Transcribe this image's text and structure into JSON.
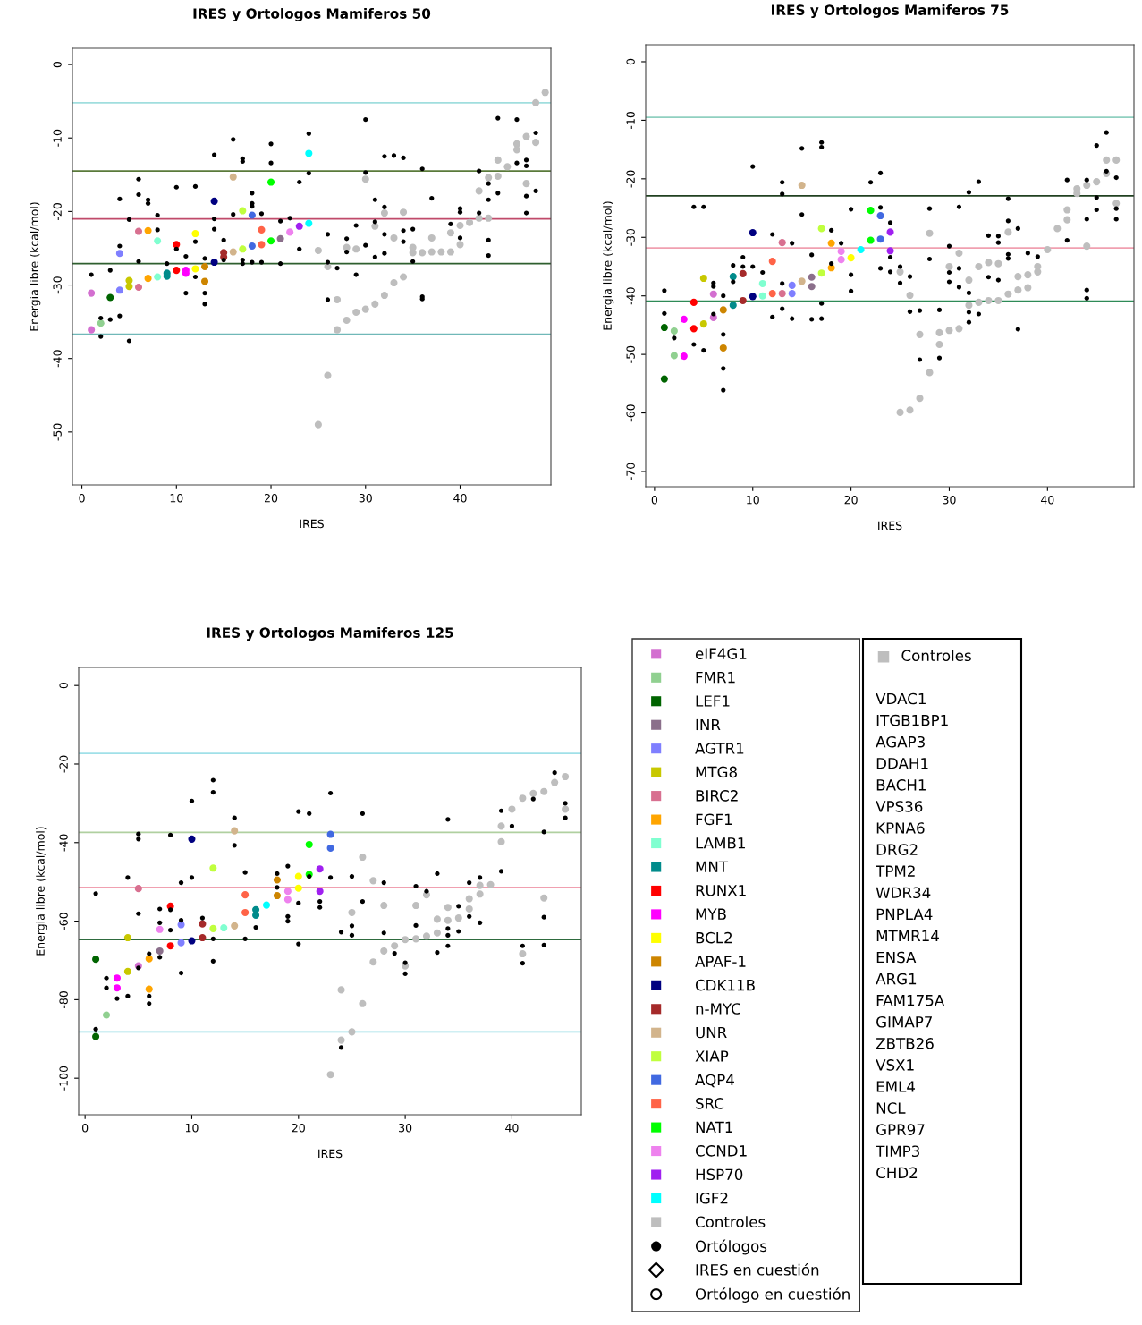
{
  "chart_data": [
    {
      "type": "scatter",
      "title": "IRES y Ortologos Mamiferos 50",
      "xlabel": "IRES",
      "ylabel": "Energia libre (kcal/mol)",
      "xlim": [
        -1.0,
        49.6
      ],
      "ylim": [
        -57.2,
        2.2
      ],
      "xticks": [
        0,
        10,
        20,
        30,
        40
      ],
      "yticks": [
        0,
        -10,
        -20,
        -30,
        -40,
        -50
      ],
      "grid": false,
      "marker": "circle",
      "ref_lines": [
        {
          "axis": "y",
          "value": -5.2,
          "color": "#a0dede"
        },
        {
          "axis": "y",
          "value": -14.5,
          "color": "#5a7a3a"
        },
        {
          "axis": "y",
          "value": -21.0,
          "color": "#c04a6a"
        },
        {
          "axis": "y",
          "value": -27.1,
          "color": "#2f5f2f"
        },
        {
          "axis": "y",
          "value": -36.7,
          "color": "#70b8b8"
        }
      ],
      "series": [
        {
          "color": "#d36fd0",
          "x": [
            1,
            1
          ],
          "values": [
            -31.1,
            -36.1
          ]
        },
        {
          "color": "#90d090",
          "x": [
            2
          ],
          "values": [
            -35.2
          ]
        },
        {
          "color": "#006400",
          "x": [
            3
          ],
          "values": [
            -31.7
          ]
        },
        {
          "color": "#8b6f8b",
          "x": [
            21
          ],
          "values": [
            -23.7
          ]
        },
        {
          "color": "#7f7fff",
          "x": [
            4,
            4
          ],
          "values": [
            -25.7,
            -30.7
          ]
        },
        {
          "color": "#c8c800",
          "x": [
            5,
            5
          ],
          "values": [
            -29.4,
            -30.2
          ]
        },
        {
          "color": "#d87090",
          "x": [
            6,
            6
          ],
          "values": [
            -22.7,
            -30.3
          ]
        },
        {
          "color": "#ffa500",
          "x": [
            7,
            7
          ],
          "values": [
            -22.6,
            -29.1
          ]
        },
        {
          "color": "#80ffd0",
          "x": [
            8,
            8
          ],
          "values": [
            -24.0,
            -28.9
          ]
        },
        {
          "color": "#008b8b",
          "x": [
            9,
            9
          ],
          "values": [
            -28.4,
            -28.8
          ]
        },
        {
          "color": "#ff0000",
          "x": [
            10,
            10
          ],
          "values": [
            -24.5,
            -28.0
          ]
        },
        {
          "color": "#ff00ff",
          "x": [
            11,
            11
          ],
          "values": [
            -28.0,
            -28.4
          ]
        },
        {
          "color": "#ffff00",
          "x": [
            12,
            12
          ],
          "values": [
            -23.0,
            -27.8
          ]
        },
        {
          "color": "#cd8500",
          "x": [
            13,
            13
          ],
          "values": [
            -27.5,
            -29.5
          ]
        },
        {
          "color": "#000080",
          "x": [
            14,
            14
          ],
          "values": [
            -18.6,
            -26.9
          ]
        },
        {
          "color": "#a52a2a",
          "x": [
            15,
            15
          ],
          "values": [
            -25.6,
            -26.2
          ]
        },
        {
          "color": "#d2b48c",
          "x": [
            16,
            16
          ],
          "values": [
            -15.3,
            -25.5
          ]
        },
        {
          "color": "#c0ff3e",
          "x": [
            17,
            17
          ],
          "values": [
            -19.9,
            -25.1
          ]
        },
        {
          "color": "#4169e1",
          "x": [
            18,
            18
          ],
          "values": [
            -20.5,
            -24.7
          ]
        },
        {
          "color": "#ff6347",
          "x": [
            19,
            19
          ],
          "values": [
            -22.5,
            -24.5
          ]
        },
        {
          "color": "#00ff00",
          "x": [
            20,
            20
          ],
          "values": [
            -16.0,
            -24.0
          ]
        },
        {
          "color": "#ee82ee",
          "x": [
            22
          ],
          "values": [
            -22.8
          ]
        },
        {
          "color": "#a020f0",
          "x": [
            23
          ],
          "values": [
            -22.0
          ]
        },
        {
          "color": "#00ffff",
          "x": [
            24,
            24
          ],
          "values": [
            -12.1,
            -21.6
          ]
        },
        {
          "color": "#bebebe",
          "x": [
            25,
            25,
            26,
            26,
            27,
            27,
            28,
            28,
            29,
            29,
            30,
            30,
            31,
            31,
            32,
            32,
            33,
            33,
            34,
            34,
            35,
            35,
            36,
            37,
            37,
            38,
            39,
            39,
            40,
            40,
            41,
            42,
            42,
            43,
            43,
            44,
            44,
            45,
            46,
            46,
            47,
            47,
            48,
            48,
            49
          ],
          "values": [
            -49.0,
            -25.3,
            -42.3,
            -27.5,
            -36.1,
            -32.0,
            -34.8,
            -24.9,
            -33.7,
            -25.1,
            -33.3,
            -15.6,
            -32.6,
            -22.0,
            -31.4,
            -20.2,
            -29.7,
            -23.6,
            -28.9,
            -20.1,
            -25.6,
            -24.9,
            -25.6,
            -25.5,
            -23.6,
            -25.5,
            -25.5,
            -22.9,
            -24.5,
            -21.9,
            -21.5,
            -20.9,
            -17.2,
            -20.9,
            -15.4,
            -15.2,
            -13.0,
            -13.9,
            -10.8,
            -11.6,
            -9.8,
            -16.2,
            -5.2,
            -10.6,
            -3.8
          ]
        },
        {
          "color": "#000000",
          "x": [
            1,
            2,
            2,
            3,
            3,
            4,
            4,
            4,
            5,
            5,
            6,
            6,
            6,
            7,
            7,
            8,
            8,
            9,
            10,
            10,
            11,
            11,
            12,
            12,
            12,
            13,
            13,
            13,
            14,
            14,
            14,
            15,
            15,
            16,
            16,
            17,
            17,
            17,
            17,
            18,
            18,
            18,
            18,
            19,
            19,
            20,
            20,
            21,
            21,
            22,
            23,
            23,
            24,
            24,
            26,
            26,
            26,
            27,
            28,
            28,
            29,
            29,
            30,
            30,
            30,
            31,
            31,
            31,
            32,
            32,
            32,
            32,
            33,
            34,
            34,
            34,
            35,
            35,
            36,
            36,
            36,
            37,
            39,
            40,
            40,
            40,
            42,
            42,
            43,
            43,
            43,
            43,
            44,
            44,
            46,
            46,
            47,
            47,
            47,
            47,
            48,
            48
          ],
          "values": [
            -28.6,
            -34.5,
            -37.0,
            -28.0,
            -34.7,
            -18.3,
            -24.7,
            -34.2,
            -21.1,
            -37.6,
            -15.6,
            -17.7,
            -26.8,
            -18.4,
            -18.9,
            -20.5,
            -22.5,
            -27.1,
            -16.7,
            -25.1,
            -26.1,
            -31.1,
            -16.6,
            -24.1,
            -28.9,
            -26.4,
            -31.1,
            -32.6,
            -12.3,
            -21.0,
            -22.4,
            -23.9,
            -26.6,
            -10.2,
            -20.4,
            -12.8,
            -13.2,
            -26.6,
            -27.1,
            -17.5,
            -18.9,
            -19.3,
            -26.9,
            -20.3,
            -26.9,
            -10.8,
            -13.4,
            -21.3,
            -27.1,
            -20.9,
            -16.0,
            -25.1,
            -9.4,
            -14.8,
            -23.1,
            -26.9,
            -32.0,
            -27.7,
            -23.7,
            -25.5,
            -21.9,
            -28.6,
            -7.5,
            -14.7,
            -24.6,
            -18.4,
            -21.4,
            -26.2,
            -12.5,
            -19.4,
            -23.1,
            -25.7,
            -12.4,
            -12.7,
            -22.6,
            -24.1,
            -22.4,
            -26.8,
            -14.2,
            -31.6,
            -31.9,
            -18.2,
            -21.7,
            -19.6,
            -20.1,
            -23.6,
            -14.5,
            -20.2,
            -16.2,
            -18.4,
            -23.9,
            -26.0,
            -7.3,
            -17.5,
            -7.5,
            -13.4,
            -13.0,
            -13.8,
            -17.9,
            -20.2,
            -9.3,
            -17.2
          ],
          "marker": "circle"
        }
      ]
    },
    {
      "type": "scatter",
      "title": "IRES y Ortologos Mamiferos 75",
      "xlabel": "IRES",
      "ylabel": "Energia libre (kcal/mol)",
      "xlim": [
        -0.9,
        48.8
      ],
      "ylim": [
        -72.6,
        2.9
      ],
      "xticks": [
        0,
        10,
        20,
        30,
        40
      ],
      "yticks": [
        0,
        -10,
        -20,
        -30,
        -40,
        -50,
        -60,
        -70
      ],
      "grid": false,
      "marker": "circle",
      "ref_lines": [
        {
          "axis": "y",
          "value": -9.5,
          "color": "#90d0c0"
        },
        {
          "axis": "y",
          "value": -22.9,
          "color": "#204020"
        },
        {
          "axis": "y",
          "value": -31.8,
          "color": "#f0a0b0"
        },
        {
          "axis": "y",
          "value": -40.9,
          "color": "#2e8b57"
        }
      ],
      "series": [
        {
          "color": "#d36fd0",
          "x": [
            6,
            6
          ],
          "values": [
            -39.7,
            -43.7
          ]
        },
        {
          "color": "#90d090",
          "x": [
            2,
            2
          ],
          "values": [
            -46.0,
            -50.2
          ]
        },
        {
          "color": "#006400",
          "x": [
            1,
            1
          ],
          "values": [
            -45.4,
            -54.2
          ]
        },
        {
          "color": "#8b6f8b",
          "x": [
            16,
            16
          ],
          "values": [
            -36.8,
            -38.4
          ]
        },
        {
          "color": "#7f7fff",
          "x": [
            14,
            14
          ],
          "values": [
            -38.2,
            -39.6
          ]
        },
        {
          "color": "#c8c800",
          "x": [
            5,
            5
          ],
          "values": [
            -37.0,
            -44.8
          ]
        },
        {
          "color": "#d87090",
          "x": [
            13,
            13
          ],
          "values": [
            -30.9,
            -39.6
          ]
        },
        {
          "color": "#ffa500",
          "x": [
            18,
            18
          ],
          "values": [
            -31.0,
            -35.2
          ]
        },
        {
          "color": "#80ffd0",
          "x": [
            11,
            11
          ],
          "values": [
            -37.9,
            -40.0
          ]
        },
        {
          "color": "#008b8b",
          "x": [
            8,
            8
          ],
          "values": [
            -36.7,
            -41.6
          ]
        },
        {
          "color": "#ff0000",
          "x": [
            4,
            4
          ],
          "values": [
            -41.1,
            -45.6
          ]
        },
        {
          "color": "#ff00ff",
          "x": [
            3,
            3
          ],
          "values": [
            -44.0,
            -50.3
          ]
        },
        {
          "color": "#ffff00",
          "x": [
            20
          ],
          "values": [
            -33.5
          ]
        },
        {
          "color": "#cd8500",
          "x": [
            7,
            7
          ],
          "values": [
            -42.4,
            -48.9
          ]
        },
        {
          "color": "#000080",
          "x": [
            10,
            10
          ],
          "values": [
            -29.2,
            -40.1
          ]
        },
        {
          "color": "#a52a2a",
          "x": [
            9,
            9
          ],
          "values": [
            -36.2,
            -40.8
          ]
        },
        {
          "color": "#d2b48c",
          "x": [
            15,
            15
          ],
          "values": [
            -21.1,
            -37.5
          ]
        },
        {
          "color": "#c0ff3e",
          "x": [
            17,
            17
          ],
          "values": [
            -28.5,
            -36.1
          ]
        },
        {
          "color": "#4169e1",
          "x": [
            23,
            23
          ],
          "values": [
            -26.3,
            -30.3
          ]
        },
        {
          "color": "#ff6347",
          "x": [
            12,
            12
          ],
          "values": [
            -34.1,
            -39.6
          ]
        },
        {
          "color": "#00ff00",
          "x": [
            22,
            22
          ],
          "values": [
            -25.4,
            -30.5
          ]
        },
        {
          "color": "#ee82ee",
          "x": [
            19,
            19
          ],
          "values": [
            -32.4,
            -33.8
          ]
        },
        {
          "color": "#a020f0",
          "x": [
            24,
            24
          ],
          "values": [
            -29.1,
            -32.3
          ]
        },
        {
          "color": "#00ffff",
          "x": [
            21
          ],
          "values": [
            -32.1
          ]
        },
        {
          "color": "#bebebe",
          "x": [
            25,
            25,
            26,
            26,
            27,
            27,
            28,
            28,
            29,
            29,
            30,
            30,
            31,
            31,
            32,
            32,
            33,
            33,
            34,
            34,
            35,
            35,
            36,
            36,
            37,
            37,
            38,
            38,
            39,
            39,
            40,
            41,
            42,
            42,
            43,
            43,
            44,
            44,
            45,
            46,
            46,
            47,
            47
          ],
          "values": [
            -59.9,
            -35.9,
            -59.5,
            -39.9,
            -57.5,
            -46.6,
            -53.1,
            -29.3,
            -48.3,
            -46.3,
            -45.9,
            -35.0,
            -45.6,
            -32.7,
            -41.6,
            -37.3,
            -41.1,
            -35.0,
            -40.8,
            -34.3,
            -40.8,
            -34.5,
            -39.7,
            -29.1,
            -39.0,
            -36.7,
            -38.6,
            -36.4,
            -35.9,
            -35.0,
            -32.1,
            -28.5,
            -25.3,
            -27.0,
            -21.7,
            -22.5,
            -21.1,
            -31.5,
            -20.5,
            -19.1,
            -16.8,
            -16.8,
            -24.2
          ]
        },
        {
          "color": "#000000",
          "x": [
            1,
            1,
            2,
            4,
            4,
            5,
            5,
            6,
            6,
            6,
            7,
            7,
            7,
            7,
            8,
            8,
            9,
            9,
            10,
            10,
            11,
            12,
            12,
            13,
            13,
            13,
            13,
            14,
            14,
            15,
            15,
            16,
            16,
            17,
            17,
            17,
            17,
            18,
            18,
            19,
            20,
            20,
            20,
            22,
            23,
            23,
            23,
            24,
            24,
            24,
            25,
            25,
            26,
            26,
            27,
            27,
            28,
            28,
            29,
            29,
            30,
            30,
            30,
            31,
            31,
            31,
            32,
            32,
            32,
            32,
            33,
            33,
            34,
            34,
            35,
            35,
            35,
            36,
            36,
            36,
            36,
            37,
            37,
            38,
            39,
            42,
            42,
            44,
            44,
            44,
            44,
            45,
            45,
            45,
            46,
            46,
            47,
            47,
            47
          ],
          "values": [
            -39.1,
            -43.0,
            -47.2,
            -24.8,
            -48.3,
            -24.8,
            -49.3,
            -37.8,
            -38.4,
            -43.1,
            -40.0,
            -46.6,
            -52.4,
            -56.1,
            -34.8,
            -37.6,
            -33.4,
            -35.0,
            -17.9,
            -35.0,
            -36.0,
            -29.5,
            -43.6,
            -20.6,
            -22.6,
            -37.9,
            -42.2,
            -31.0,
            -43.9,
            -14.8,
            -26.1,
            -33.0,
            -44.0,
            -13.8,
            -14.6,
            -41.3,
            -43.9,
            -28.8,
            -34.5,
            -31.0,
            -25.2,
            -36.4,
            -39.2,
            -20.6,
            -19.0,
            -24.9,
            -35.3,
            -27.5,
            -33.4,
            -35.9,
            -35.0,
            -37.8,
            -36.7,
            -42.7,
            -42.5,
            -50.9,
            -25.1,
            -33.7,
            -42.4,
            -50.6,
            -31.5,
            -36.0,
            -37.6,
            -24.8,
            -35.3,
            -38.5,
            -22.3,
            -39.5,
            -42.8,
            -44.5,
            -20.5,
            -43.1,
            -29.7,
            -36.8,
            -29.8,
            -30.9,
            -37.3,
            -23.4,
            -27.2,
            -32.9,
            -33.6,
            -28.5,
            -45.7,
            -32.7,
            -33.3,
            -20.2,
            -30.5,
            -20.2,
            -26.9,
            -39.0,
            -40.4,
            -14.3,
            -23.2,
            -25.3,
            -12.1,
            -18.7,
            -19.8,
            -25.1,
            -26.9
          ],
          "marker": "circle"
        }
      ]
    },
    {
      "type": "scatter",
      "title": "IRES y Ortologos Mamiferos 125",
      "xlabel": "IRES",
      "ylabel": "Energia libre (kcal/mol)",
      "xlim": [
        -0.6,
        46.5
      ],
      "ylim": [
        -109.3,
        4.6
      ],
      "xticks": [
        0,
        10,
        20,
        30,
        40
      ],
      "yticks": [
        0,
        -20,
        -40,
        -60,
        -80,
        -100
      ],
      "grid": false,
      "marker": "circle",
      "legend": "right",
      "ref_lines": [
        {
          "axis": "y",
          "value": -17.3,
          "color": "#a0e0e8"
        },
        {
          "axis": "y",
          "value": -37.4,
          "color": "#b0d0a0"
        },
        {
          "axis": "y",
          "value": -51.4,
          "color": "#f0a0b0"
        },
        {
          "axis": "y",
          "value": -64.7,
          "color": "#2e6b3e"
        },
        {
          "axis": "y",
          "value": -88.2,
          "color": "#a0e0e8"
        }
      ],
      "series": [
        {
          "name": "eIF4G1",
          "color": "#d36fd0",
          "x": [
            5
          ],
          "values": [
            -71.4
          ]
        },
        {
          "name": "FMR1",
          "color": "#90d090",
          "x": [
            2
          ],
          "values": [
            -83.9
          ]
        },
        {
          "name": "LEF1",
          "color": "#006400",
          "x": [
            1,
            1
          ],
          "values": [
            -89.4,
            -69.7
          ]
        },
        {
          "name": "INR",
          "color": "#8b6f8b",
          "x": [
            7
          ],
          "values": [
            -67.6
          ]
        },
        {
          "name": "AGTR1",
          "color": "#7f7fff",
          "x": [
            9,
            9
          ],
          "values": [
            -60.9,
            -65.5
          ]
        },
        {
          "name": "MTG8",
          "color": "#c8c800",
          "x": [
            4,
            4
          ],
          "values": [
            -64.2,
            -72.8
          ]
        },
        {
          "name": "BIRC2",
          "color": "#d87090",
          "x": [
            5
          ],
          "values": [
            -51.7
          ]
        },
        {
          "name": "FGF1",
          "color": "#ffa500",
          "x": [
            6,
            6
          ],
          "values": [
            -69.6,
            -77.3
          ]
        },
        {
          "name": "LAMB1",
          "color": "#80ffd0",
          "x": [
            13
          ],
          "values": [
            -61.7
          ]
        },
        {
          "name": "MNT",
          "color": "#008b8b",
          "x": [
            16,
            16
          ],
          "values": [
            -57.1,
            -58.5
          ]
        },
        {
          "name": "RUNX1",
          "color": "#ff0000",
          "x": [
            8,
            8
          ],
          "values": [
            -56.2,
            -66.3
          ]
        },
        {
          "name": "MYB",
          "color": "#ff00ff",
          "x": [
            3,
            3
          ],
          "values": [
            -74.5,
            -77.0
          ]
        },
        {
          "name": "BCL2",
          "color": "#ffff00",
          "x": [
            20,
            20
          ],
          "values": [
            -48.6,
            -51.6
          ]
        },
        {
          "name": "APAF-1",
          "color": "#cd8500",
          "x": [
            18,
            18
          ],
          "values": [
            -49.5,
            -53.5
          ]
        },
        {
          "name": "CDK11B",
          "color": "#000080",
          "x": [
            10,
            10
          ],
          "values": [
            -39.1,
            -65.0
          ]
        },
        {
          "name": "n-MYC",
          "color": "#a52a2a",
          "x": [
            11,
            11
          ],
          "values": [
            -60.7,
            -64.2
          ]
        },
        {
          "name": "UNR",
          "color": "#d2b48c",
          "x": [
            14,
            14
          ],
          "values": [
            -37.0,
            -61.2
          ]
        },
        {
          "name": "XIAP",
          "color": "#c0ff3e",
          "x": [
            12,
            12
          ],
          "values": [
            -46.5,
            -61.9
          ]
        },
        {
          "name": "AQP4",
          "color": "#4169e1",
          "x": [
            23,
            23
          ],
          "values": [
            -37.9,
            -41.4
          ]
        },
        {
          "name": "SRC",
          "color": "#ff6347",
          "x": [
            15,
            15
          ],
          "values": [
            -53.3,
            -57.8
          ]
        },
        {
          "name": "NAT1",
          "color": "#00ff00",
          "x": [
            21,
            21
          ],
          "values": [
            -40.5,
            -48.1
          ]
        },
        {
          "name": "CCND1",
          "color": "#ee82ee",
          "x": [
            19,
            19,
            7
          ],
          "values": [
            -52.4,
            -54.5,
            -62.1
          ]
        },
        {
          "name": "HSP70",
          "color": "#a020f0",
          "x": [
            22,
            22
          ],
          "values": [
            -46.7,
            -52.4
          ]
        },
        {
          "name": "IGF2",
          "color": "#00ffff",
          "x": [
            17
          ],
          "values": [
            -55.9
          ]
        },
        {
          "name": "Controles",
          "color": "#bebebe",
          "x": [
            23,
            24,
            24,
            25,
            25,
            26,
            26,
            27,
            27,
            28,
            28,
            29,
            30,
            30,
            31,
            31,
            32,
            32,
            33,
            33,
            34,
            34,
            35,
            36,
            36,
            37,
            37,
            38,
            39,
            39,
            40,
            41,
            41,
            42,
            43,
            43,
            44,
            45,
            45
          ],
          "values": [
            -99.1,
            -77.5,
            -90.3,
            -57.8,
            -88.2,
            -43.7,
            -81.0,
            -49.7,
            -70.4,
            -56.0,
            -67.6,
            -66.3,
            -71.4,
            -64.7,
            -56.0,
            -64.5,
            -53.3,
            -63.8,
            -59.5,
            -63.0,
            -56.5,
            -59.8,
            -59.2,
            -54.3,
            -56.9,
            -50.9,
            -53.1,
            -50.7,
            -35.8,
            -39.8,
            -31.5,
            -28.7,
            -68.3,
            -27.5,
            -27.0,
            -54.1,
            -24.7,
            -23.2,
            -31.5
          ]
        },
        {
          "name": "Ortólogos",
          "color": "#000000",
          "marker": "circle",
          "x": [
            1,
            1,
            2,
            2,
            3,
            4,
            4,
            5,
            5,
            5,
            5,
            6,
            6,
            6,
            7,
            7,
            7,
            8,
            8,
            8,
            9,
            9,
            9,
            10,
            10,
            11,
            12,
            12,
            12,
            12,
            14,
            14,
            15,
            15,
            16,
            18,
            18,
            19,
            19,
            19,
            20,
            20,
            20,
            21,
            21,
            22,
            22,
            23,
            23,
            24,
            24,
            25,
            25,
            25,
            26,
            26,
            28,
            28,
            29,
            30,
            30,
            31,
            31,
            32,
            33,
            33,
            34,
            34,
            34,
            34,
            35,
            35,
            36,
            36,
            37,
            37,
            39,
            39,
            40,
            41,
            41,
            42,
            43,
            43,
            43,
            44,
            45,
            45
          ],
          "values": [
            -53.0,
            -87.5,
            -74.5,
            -77.0,
            -79.7,
            -48.9,
            -79.1,
            -37.8,
            -39.1,
            -58.1,
            -71.9,
            -68.3,
            -79.1,
            -81.0,
            -56.9,
            -60.4,
            -69.2,
            -38.1,
            -57.1,
            -62.3,
            -50.2,
            -73.2,
            -59.8,
            -29.4,
            -48.9,
            -59.2,
            -24.1,
            -27.2,
            -64.5,
            -70.2,
            -33.7,
            -40.7,
            -47.6,
            -64.5,
            -61.6,
            -47.9,
            -51.4,
            -46.0,
            -58.8,
            -60.0,
            -32.1,
            -55.4,
            -65.8,
            -32.6,
            -48.6,
            -55.0,
            -56.5,
            -27.4,
            -48.9,
            -62.8,
            -92.2,
            -48.6,
            -61.2,
            -63.6,
            -32.6,
            -55.0,
            -50.2,
            -63.0,
            -68.2,
            -70.6,
            -73.4,
            -51.1,
            -61.1,
            -52.4,
            -47.9,
            -68.0,
            -34.1,
            -61.9,
            -63.6,
            -66.3,
            -56.2,
            -62.6,
            -50.2,
            -58.8,
            -48.9,
            -60.4,
            -31.9,
            -47.3,
            -35.8,
            -66.3,
            -70.7,
            -28.9,
            -37.3,
            -59.0,
            -66.1,
            -22.2,
            -30.0,
            -33.7
          ]
        },
        {
          "name": "IRES en cuestión",
          "color": "#000000",
          "marker": "diamond"
        },
        {
          "name": "Ortólogo en cuestión",
          "color": "#000000",
          "marker": "circle"
        }
      ]
    },
    {
      "type": "other",
      "title": "Controles",
      "color": "#bebebe",
      "annotations": [
        "VDAC1",
        "ITGB1BP1",
        "AGAP3",
        "DDAH1",
        "BACH1",
        "VPS36",
        "KPNA6",
        "DRG2",
        "TPM2",
        "WDR34",
        "PNPLA4",
        "MTMR14",
        "ENSA",
        "ARG1",
        "FAM175A",
        "GIMAP7",
        "ZBTB26",
        "VSX1",
        "EML4",
        "NCL",
        "GPR97",
        "TIMP3",
        "CHD2"
      ]
    }
  ]
}
